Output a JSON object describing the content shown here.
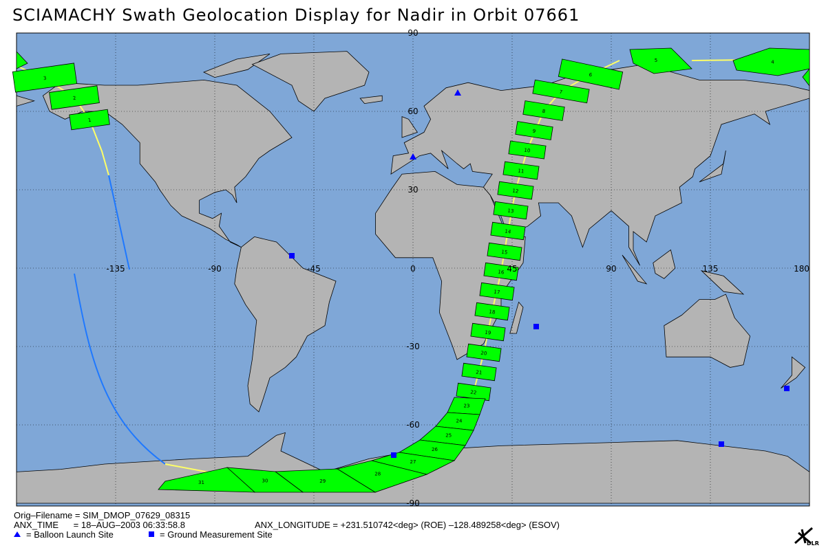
{
  "title": "SCIAMACHY Swath Geolocation Display for Nadir in Orbit 07661",
  "map": {
    "lon_labels": [
      -135,
      -90,
      -45,
      0,
      45,
      90,
      135,
      180
    ],
    "lat_labels": [
      90,
      60,
      30,
      -30,
      -60,
      -90
    ]
  },
  "swath": {
    "cells": [
      1,
      2,
      3,
      4,
      5,
      6,
      7,
      8,
      9,
      10,
      11,
      12,
      13,
      14,
      15,
      16,
      17,
      18,
      19,
      20,
      21,
      22,
      23,
      24,
      25,
      26,
      27,
      28,
      29,
      30,
      31
    ]
  },
  "footer": {
    "filename": "Orig–Filename = SIM_DMOP_07629_08315",
    "anx_time": "ANX_TIME      = 18–AUG–2003 06:33:58.8",
    "anx_longitude": "ANX_LONGITUDE = +231.510742<deg> (ROE) –128.489258<deg> (ESOV)",
    "balloon": "= Balloon Launch Site",
    "ground": "= Ground Measurement Site"
  },
  "logo": "DLR"
}
